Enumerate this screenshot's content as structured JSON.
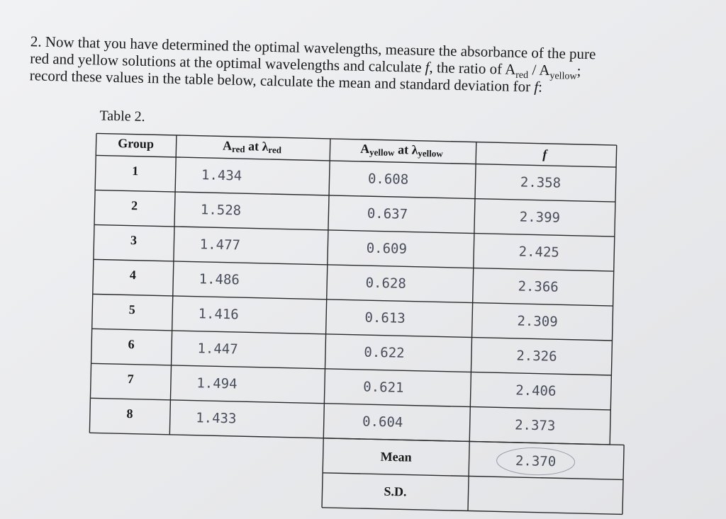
{
  "question": {
    "lines": [
      [
        "2. Now that you have determined the optimal wavelengths, measure the absorbance of the pure"
      ],
      [
        "red and yellow solutions at the optimal wavelengths and calculate ",
        "f",
        ", the ratio of A",
        "red",
        " / A",
        "yellow",
        ";"
      ],
      [
        "record these values in the table below, calculate the mean and standard deviation for ",
        "f",
        ":"
      ]
    ]
  },
  "table": {
    "caption": "Table 2.",
    "header": {
      "group": "Group",
      "ared": [
        "A",
        "red",
        " at ",
        "λ",
        "red"
      ],
      "ayellow": [
        "A",
        "yellow",
        " at ",
        "λ",
        "yellow"
      ],
      "f": "f"
    },
    "rows": [
      [
        "1",
        "1.434",
        "0.608",
        "2.358"
      ],
      [
        "2",
        "1.528",
        "0.637",
        "2.399"
      ],
      [
        "3",
        "1.477",
        "0.609",
        "2.425"
      ],
      [
        "4",
        "1.486",
        "0.628",
        "2.366"
      ],
      [
        "5",
        "1.416",
        "0.613",
        "2.309"
      ],
      [
        "6",
        "1.447",
        "0.622",
        "2.326"
      ],
      [
        "7",
        "1.494",
        "0.621",
        "2.406"
      ],
      [
        "8",
        "1.433",
        "0.604",
        "2.373"
      ]
    ],
    "mean": {
      "label": "Mean",
      "value": "2.370"
    },
    "sd": {
      "label": "S.D."
    }
  }
}
